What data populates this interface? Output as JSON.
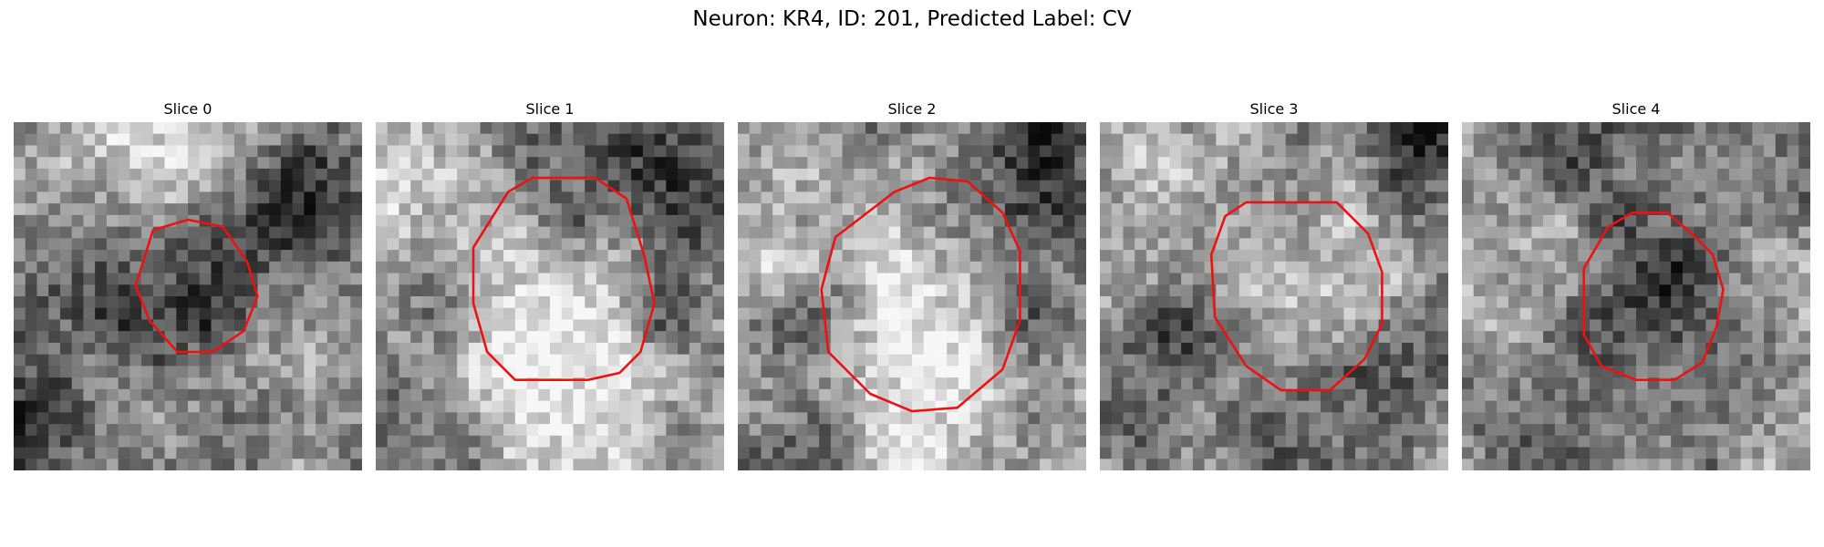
{
  "figure": {
    "title": "Neuron: KR4, ID: 201, Predicted Label: CV"
  },
  "contour_color": "#ee1111",
  "slices": [
    {
      "label": "Slice 0",
      "seed": 11,
      "base": 0.55,
      "blobs": [
        [
          0.55,
          0.45,
          0.18,
          -0.3
        ],
        [
          0.15,
          0.4,
          0.15,
          -0.25
        ],
        [
          0.85,
          0.22,
          0.15,
          -0.35
        ],
        [
          0.6,
          0.05,
          0.18,
          0.22
        ],
        [
          0.25,
          0.15,
          0.16,
          0.18
        ],
        [
          0.05,
          0.9,
          0.12,
          -0.3
        ],
        [
          0.78,
          0.6,
          0.14,
          0.15
        ]
      ],
      "contour": [
        [
          0.4,
          0.31
        ],
        [
          0.5,
          0.28
        ],
        [
          0.6,
          0.3
        ],
        [
          0.67,
          0.4
        ],
        [
          0.7,
          0.5
        ],
        [
          0.66,
          0.6
        ],
        [
          0.57,
          0.66
        ],
        [
          0.47,
          0.66
        ],
        [
          0.39,
          0.57
        ],
        [
          0.35,
          0.47
        ]
      ]
    },
    {
      "label": "Slice 1",
      "seed": 23,
      "base": 0.55,
      "blobs": [
        [
          0.5,
          0.55,
          0.26,
          0.38
        ],
        [
          0.2,
          0.55,
          0.09,
          -0.32
        ],
        [
          0.8,
          0.55,
          0.09,
          -0.28
        ],
        [
          0.5,
          0.2,
          0.12,
          -0.22
        ],
        [
          0.85,
          0.15,
          0.18,
          -0.42
        ],
        [
          0.1,
          0.85,
          0.16,
          -0.22
        ],
        [
          0.5,
          0.92,
          0.2,
          0.18
        ],
        [
          0.05,
          0.3,
          0.12,
          0.2
        ]
      ],
      "contour": [
        [
          0.38,
          0.2
        ],
        [
          0.45,
          0.16
        ],
        [
          0.63,
          0.16
        ],
        [
          0.72,
          0.22
        ],
        [
          0.77,
          0.38
        ],
        [
          0.8,
          0.52
        ],
        [
          0.76,
          0.66
        ],
        [
          0.7,
          0.72
        ],
        [
          0.61,
          0.74
        ],
        [
          0.4,
          0.74
        ],
        [
          0.32,
          0.66
        ],
        [
          0.28,
          0.52
        ],
        [
          0.28,
          0.36
        ]
      ]
    },
    {
      "label": "Slice 2",
      "seed": 37,
      "base": 0.55,
      "blobs": [
        [
          0.52,
          0.55,
          0.24,
          0.32
        ],
        [
          0.25,
          0.55,
          0.1,
          -0.3
        ],
        [
          0.8,
          0.55,
          0.1,
          -0.28
        ],
        [
          0.85,
          0.12,
          0.16,
          -0.38
        ],
        [
          0.05,
          0.35,
          0.12,
          0.22
        ],
        [
          0.15,
          0.92,
          0.14,
          -0.2
        ],
        [
          0.5,
          0.92,
          0.16,
          0.15
        ]
      ],
      "contour": [
        [
          0.45,
          0.2
        ],
        [
          0.55,
          0.16
        ],
        [
          0.66,
          0.17
        ],
        [
          0.76,
          0.26
        ],
        [
          0.81,
          0.37
        ],
        [
          0.81,
          0.57
        ],
        [
          0.76,
          0.71
        ],
        [
          0.63,
          0.82
        ],
        [
          0.5,
          0.83
        ],
        [
          0.38,
          0.78
        ],
        [
          0.26,
          0.66
        ],
        [
          0.24,
          0.48
        ],
        [
          0.28,
          0.33
        ]
      ]
    },
    {
      "label": "Slice 3",
      "seed": 51,
      "base": 0.55,
      "blobs": [
        [
          0.55,
          0.48,
          0.2,
          0.22
        ],
        [
          0.2,
          0.65,
          0.12,
          -0.32
        ],
        [
          0.85,
          0.72,
          0.12,
          -0.3
        ],
        [
          0.95,
          0.05,
          0.12,
          -0.4
        ],
        [
          0.3,
          0.1,
          0.14,
          0.15
        ],
        [
          0.5,
          0.85,
          0.14,
          -0.18
        ]
      ],
      "contour": [
        [
          0.36,
          0.27
        ],
        [
          0.42,
          0.23
        ],
        [
          0.68,
          0.23
        ],
        [
          0.77,
          0.32
        ],
        [
          0.81,
          0.43
        ],
        [
          0.81,
          0.58
        ],
        [
          0.76,
          0.68
        ],
        [
          0.66,
          0.77
        ],
        [
          0.52,
          0.77
        ],
        [
          0.42,
          0.7
        ],
        [
          0.33,
          0.56
        ],
        [
          0.32,
          0.38
        ]
      ]
    },
    {
      "label": "Slice 4",
      "seed": 67,
      "base": 0.58,
      "blobs": [
        [
          0.57,
          0.5,
          0.2,
          -0.38
        ],
        [
          0.2,
          0.4,
          0.16,
          0.22
        ],
        [
          0.85,
          0.4,
          0.14,
          0.18
        ],
        [
          0.25,
          0.1,
          0.14,
          -0.25
        ],
        [
          0.85,
          0.15,
          0.14,
          -0.2
        ],
        [
          0.3,
          0.95,
          0.14,
          -0.2
        ],
        [
          0.9,
          0.8,
          0.14,
          0.15
        ]
      ],
      "contour": [
        [
          0.42,
          0.3
        ],
        [
          0.49,
          0.26
        ],
        [
          0.59,
          0.26
        ],
        [
          0.66,
          0.32
        ],
        [
          0.72,
          0.38
        ],
        [
          0.75,
          0.48
        ],
        [
          0.73,
          0.59
        ],
        [
          0.69,
          0.69
        ],
        [
          0.61,
          0.74
        ],
        [
          0.5,
          0.74
        ],
        [
          0.4,
          0.7
        ],
        [
          0.35,
          0.61
        ],
        [
          0.35,
          0.42
        ]
      ]
    }
  ]
}
